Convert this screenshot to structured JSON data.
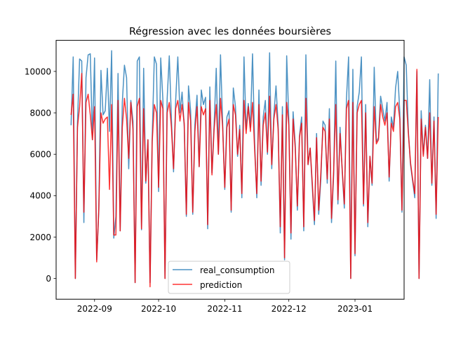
{
  "chart_data": {
    "type": "line",
    "title": "Régression avec les données boursières",
    "xlabel": "",
    "ylabel": "",
    "x_start": "2022-08-21",
    "x_step_days": 1,
    "xlim": [
      "2022-08-14",
      "2023-01-24"
    ],
    "ylim": [
      -1000,
      11500
    ],
    "x_ticks": [
      {
        "date": "2022-09-01",
        "label": "2022-09"
      },
      {
        "date": "2022-10-01",
        "label": "2022-10"
      },
      {
        "date": "2022-11-01",
        "label": "2022-11"
      },
      {
        "date": "2022-12-01",
        "label": "2022-12"
      },
      {
        "date": "2023-01-01",
        "label": "2023-01"
      }
    ],
    "y_ticks": [
      0,
      2000,
      4000,
      6000,
      8000,
      10000
    ],
    "y_tick_labels": [
      "0",
      "2000",
      "4000",
      "6000",
      "8000",
      "10000"
    ],
    "grid": false,
    "legend_position": "bottom-center",
    "series": [
      {
        "name": "real_consumption",
        "color": "#1f77b4",
        "values": [
          7400,
          10700,
          0,
          7500,
          10600,
          10500,
          2700,
          9700,
          10800,
          10850,
          6700,
          10650,
          900,
          3300,
          10050,
          7900,
          8100,
          10150,
          7100,
          11000,
          1950,
          3000,
          9900,
          2300,
          8500,
          10300,
          9700,
          5300,
          8600,
          7600,
          -200,
          10500,
          10700,
          2350,
          10150,
          4600,
          6700,
          -200,
          6800,
          10700,
          10350,
          4200,
          10650,
          8650,
          0,
          8650,
          10750,
          7700,
          5150,
          8600,
          10700,
          8000,
          9000,
          7350,
          3000,
          9300,
          8100,
          3100,
          7450,
          8850,
          5400,
          9100,
          8400,
          8750,
          2400,
          9250,
          5100,
          7400,
          10150,
          6000,
          10800,
          7500,
          4300,
          7800,
          8100,
          3200,
          9200,
          8300,
          5900,
          7400,
          3900,
          10700,
          7200,
          8450,
          7300,
          10850,
          6500,
          3900,
          9100,
          4500,
          7800,
          8600,
          6000,
          10900,
          5300,
          7900,
          9300,
          7400,
          2200,
          8300,
          900,
          10750,
          7650,
          1900,
          8050,
          6500,
          3300,
          6900,
          7800,
          2300,
          10800,
          5500,
          6300,
          4400,
          2600,
          7000,
          3100,
          4800,
          7600,
          7400,
          4600,
          8200,
          2700,
          5000,
          10500,
          3600,
          7300,
          5200,
          3400,
          8700,
          10700,
          0,
          10100,
          1100,
          8300,
          9000,
          10700,
          3500,
          8400,
          2500,
          5900,
          4500,
          10200,
          6600,
          6800,
          8800,
          8200,
          7600,
          8500,
          4700,
          7800,
          7300,
          9200,
          10000,
          8000,
          3200,
          10700,
          10300,
          7100,
          5500,
          4700,
          3900,
          10000,
          0,
          8100,
          6000,
          7400,
          5800,
          9600,
          4500,
          7800,
          2900,
          9900
        ]
      },
      {
        "name": "prediction",
        "color": "#ff0000",
        "values": [
          7900,
          8900,
          0,
          7300,
          8300,
          9900,
          3200,
          8500,
          8900,
          7900,
          6700,
          8300,
          800,
          3400,
          8000,
          7500,
          7700,
          7800,
          4300,
          8400,
          2100,
          2100,
          8600,
          2300,
          7300,
          8700,
          7700,
          5800,
          8500,
          7200,
          -200,
          8300,
          8700,
          2400,
          8200,
          4700,
          6700,
          -400,
          6600,
          8400,
          8000,
          4400,
          8600,
          8200,
          0,
          8000,
          8500,
          7300,
          5300,
          8200,
          8600,
          7600,
          8400,
          7500,
          3100,
          8500,
          7600,
          3200,
          7100,
          8300,
          5400,
          8300,
          7900,
          8200,
          2600,
          8600,
          5000,
          7200,
          8400,
          6000,
          8700,
          7300,
          4400,
          7300,
          7700,
          3300,
          8400,
          7900,
          6000,
          7200,
          4100,
          8600,
          7000,
          8300,
          7100,
          8500,
          6200,
          4100,
          8400,
          4700,
          7400,
          8000,
          6100,
          8800,
          5500,
          7700,
          8400,
          7200,
          2500,
          7900,
          1000,
          8500,
          7400,
          2200,
          7700,
          6300,
          3500,
          6800,
          7500,
          2500,
          8700,
          5500,
          6300,
          4600,
          2800,
          6800,
          3300,
          5100,
          7300,
          7100,
          4800,
          7700,
          2900,
          5200,
          8400,
          3800,
          7000,
          5300,
          3600,
          8200,
          8600,
          0,
          8500,
          1200,
          8000,
          8400,
          8600,
          3600,
          8000,
          2700,
          5900,
          4600,
          8300,
          6500,
          6700,
          8400,
          7800,
          7400,
          8000,
          4900,
          7500,
          7100,
          8300,
          8500,
          7700,
          3300,
          8600,
          8600,
          7000,
          5600,
          4800,
          4100,
          10100,
          0,
          7700,
          5900,
          7300,
          5800,
          8000,
          4600,
          7600,
          3100,
          7800
        ]
      }
    ]
  }
}
